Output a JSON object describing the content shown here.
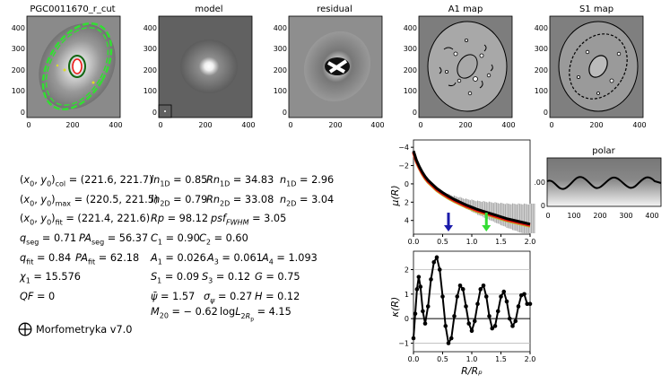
{
  "panels": {
    "titles": [
      "PGC0011670_r_cut",
      "model",
      "residual",
      "A1 map",
      "S1 map"
    ],
    "xticks": [
      "0",
      "200",
      "400"
    ],
    "yticks": [
      "400",
      "300",
      "200",
      "100",
      "0"
    ]
  },
  "polar": {
    "title": "polar",
    "xticks": [
      "0",
      "100",
      "200",
      "300",
      "400"
    ],
    "yticks": [
      "100",
      "0"
    ]
  },
  "metrics": {
    "rows": [
      [
        {
          "b": "(x",
          "s": "0",
          "m": ", y",
          "s2": "0",
          "e": ")",
          "sub": "col",
          "val": " = (221.6,  221.7)"
        },
        {
          "b": "ln",
          "sub": "1D",
          "val": " = 0.85"
        },
        {
          "b": "Rn",
          "sub": "1D",
          "val": " = 34.83"
        },
        {
          "b": "n",
          "sub": "1D",
          "val": " = 2.96"
        }
      ],
      [
        {
          "b": "(x",
          "s": "0",
          "m": ", y",
          "s2": "0",
          "e": ")",
          "sub": "max",
          "val": " = (220.5,  221.5)"
        },
        {
          "b": "ln",
          "sub": "2D",
          "val": " = 0.79"
        },
        {
          "b": "Rn",
          "sub": "2D",
          "val": " = 33.08"
        },
        {
          "b": "n",
          "sub": "2D",
          "val": " = 3.04"
        }
      ],
      [
        {
          "b": "(x",
          "s": "0",
          "m": ", y",
          "s2": "0",
          "e": ")",
          "sub": "fit",
          "val": " = (221.4,  221.6)"
        },
        {
          "b": "Rp",
          "sub": "",
          "val": " = 98.12"
        },
        {
          "b": "psf",
          "sub": "FWHM",
          "val": " = 3.05"
        }
      ],
      [
        {
          "b": "q",
          "sub": "seg",
          "val": " = 0.71"
        },
        {
          "b": "PA",
          "sub": "seg",
          "val": " = 56.37"
        },
        {
          "b": "C",
          "sub": "1",
          "val": " = 0.90"
        },
        {
          "b": "C",
          "sub": "2",
          "val": " = 0.60"
        }
      ],
      [
        {
          "b": "q",
          "sub": "fit",
          "val": " = 0.84"
        },
        {
          "b": "PA",
          "sub": "fit",
          "val": " = 62.18"
        },
        {
          "b": "A",
          "sub": "1",
          "val": " = 0.026"
        },
        {
          "b": "A",
          "sub": "3",
          "val": " = 0.061"
        },
        {
          "b": "A",
          "sub": "4",
          "val": " = 1.093"
        }
      ],
      [
        {
          "b": "χ",
          "sub": "1",
          "val": " = 15.576"
        },
        {
          "b": "S",
          "sub": "1",
          "val": " = 0.09"
        },
        {
          "b": "S",
          "sub": "3",
          "val": " = 0.12"
        },
        {
          "b": "G",
          "sub": "",
          "val": " = 0.75"
        }
      ],
      [
        {
          "b": "QF",
          "sub": "",
          "val": " = 0"
        },
        {
          "b": "ψ̄",
          "sub": "",
          "val": " = 1.57"
        },
        {
          "b": "σ",
          "sub": "ψ",
          "val": " = 0.27"
        },
        {
          "b": "H",
          "sub": "",
          "val": " = 0.12"
        }
      ],
      [
        {
          "b": "M",
          "sub": "20",
          "val": " = − 0.62"
        },
        {
          "b": "logL",
          "sub": "2Rₚ",
          "val": " = 4.15"
        }
      ]
    ],
    "row_left_labels": [
      [
        "(x₀, y₀)col = (221.6,  221.7)",
        "ln1D = 0.85",
        "Rn1D = 34.83",
        "n1D = 2.96"
      ]
    ]
  },
  "logo": {
    "text": "Morfometryka v7.0",
    "icon": "circled-plus-icon"
  },
  "profile": {
    "ylabel": "μ(R)",
    "yticks": [
      "−4",
      "−2",
      "0",
      "2",
      "4"
    ],
    "xticks": [
      "0.0",
      "0.5",
      "1.0",
      "1.5",
      "2.0"
    ]
  },
  "curvature": {
    "ylabel": "κ(R)",
    "xlabel": "R/Rₚ",
    "yticks": [
      "2",
      "1",
      "0",
      "−1"
    ],
    "xticks": [
      "0.0",
      "0.5",
      "1.0",
      "1.5",
      "2.0"
    ]
  },
  "colors": {
    "green": "#33dd33",
    "red": "#ee1111",
    "olive": "#bbbb33",
    "blue": "#1a1aaa"
  },
  "chart_data": [
    {
      "type": "line",
      "title": "",
      "xlabel": "",
      "ylabel": "μ(R)",
      "xlim": [
        0,
        2.0
      ],
      "ylim": [
        5.5,
        -4.8
      ],
      "series": [
        {
          "name": "profile",
          "x": [
            0.0,
            0.05,
            0.1,
            0.15,
            0.2,
            0.25,
            0.3,
            0.4,
            0.5,
            0.6,
            0.7,
            0.8,
            0.9,
            1.0,
            1.1,
            1.2,
            1.3,
            1.4,
            1.5,
            1.6,
            1.7,
            1.8,
            1.9,
            2.0
          ],
          "y": [
            -3.6,
            -2.6,
            -1.9,
            -1.3,
            -0.8,
            -0.4,
            -0.1,
            0.5,
            0.95,
            1.35,
            1.7,
            2.0,
            2.3,
            2.55,
            2.8,
            3.0,
            3.2,
            3.4,
            3.6,
            3.8,
            3.95,
            4.1,
            4.25,
            4.4
          ]
        }
      ],
      "markers": [
        {
          "name": "blue-arrow",
          "x": 0.6
        },
        {
          "name": "green-arrow",
          "x": 1.25
        }
      ]
    },
    {
      "type": "line",
      "title": "",
      "xlabel": "R/Rₚ",
      "ylabel": "κ(R)",
      "xlim": [
        0,
        2.0
      ],
      "ylim": [
        -1.35,
        2.75
      ],
      "series": [
        {
          "name": "kappa",
          "x": [
            0.0,
            0.03,
            0.06,
            0.09,
            0.12,
            0.16,
            0.2,
            0.25,
            0.3,
            0.35,
            0.4,
            0.45,
            0.5,
            0.55,
            0.6,
            0.65,
            0.7,
            0.75,
            0.8,
            0.85,
            0.9,
            0.95,
            1.0,
            1.05,
            1.1,
            1.15,
            1.2,
            1.25,
            1.3,
            1.35,
            1.4,
            1.45,
            1.5,
            1.55,
            1.6,
            1.65,
            1.7,
            1.75,
            1.8,
            1.85,
            1.9,
            1.95,
            2.0
          ],
          "y": [
            -0.8,
            0.2,
            1.2,
            1.7,
            1.3,
            0.3,
            -0.2,
            0.5,
            1.6,
            2.3,
            2.5,
            2.0,
            0.9,
            -0.3,
            -1.0,
            -0.8,
            0.1,
            0.9,
            1.35,
            1.2,
            0.5,
            -0.2,
            -0.5,
            -0.1,
            0.6,
            1.2,
            1.35,
            0.9,
            0.1,
            -0.4,
            -0.3,
            0.3,
            0.9,
            1.1,
            0.7,
            0.0,
            -0.3,
            -0.1,
            0.5,
            0.95,
            1.0,
            0.6,
            0.6
          ]
        }
      ]
    }
  ]
}
